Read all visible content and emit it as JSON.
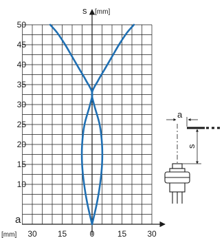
{
  "chart_data": {
    "type": "line",
    "ylabel": "s",
    "yunit": "[mm]",
    "xlabel": "a",
    "xunit": "[mm]",
    "ylim": [
      0,
      50
    ],
    "xlim": [
      -35,
      35
    ],
    "yticks": [
      10,
      15,
      20,
      25,
      30,
      35,
      40,
      45,
      50
    ],
    "xticks": [
      {
        "value": -30,
        "label": "30"
      },
      {
        "value": -15,
        "label": "15"
      },
      {
        "value": 0,
        "label": "0"
      },
      {
        "value": 15,
        "label": "15"
      },
      {
        "value": 30,
        "label": "30"
      }
    ],
    "grid": true,
    "line_color": "#1f6fb2",
    "series": [
      {
        "points": [
          [
            0,
            0
          ],
          [
            2.3,
            5
          ],
          [
            4,
            10
          ],
          [
            5,
            15
          ],
          [
            5,
            20
          ],
          [
            3.8,
            25
          ],
          [
            1,
            30
          ],
          [
            0,
            33
          ],
          [
            3,
            36
          ],
          [
            6.5,
            39
          ],
          [
            10,
            42
          ],
          [
            13.5,
            45
          ],
          [
            17.5,
            48
          ],
          [
            21,
            50
          ]
        ]
      },
      {
        "points": [
          [
            0,
            0
          ],
          [
            -2.3,
            5
          ],
          [
            -4,
            10
          ],
          [
            -5,
            15
          ],
          [
            -5,
            20
          ],
          [
            -3.8,
            25
          ],
          [
            -1,
            30
          ],
          [
            0,
            33
          ],
          [
            -3,
            36
          ],
          [
            -6.5,
            39
          ],
          [
            -10,
            42
          ],
          [
            -13.5,
            45
          ],
          [
            -17.5,
            48
          ],
          [
            -21,
            50
          ]
        ]
      }
    ]
  },
  "diagram": {
    "label_a": "a",
    "label_s": "s"
  }
}
